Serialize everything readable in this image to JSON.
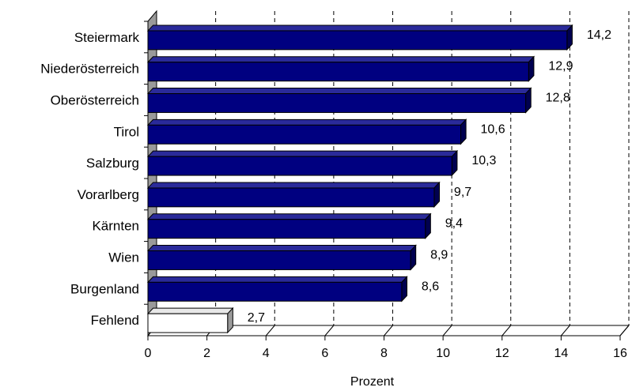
{
  "chart_data": {
    "type": "bar",
    "orientation": "horizontal",
    "categories": [
      "Steiermark",
      "Niederösterreich",
      "Oberösterreich",
      "Tirol",
      "Salzburg",
      "Vorarlberg",
      "Kärnten",
      "Wien",
      "Burgenland",
      "Fehlend"
    ],
    "values": [
      14.2,
      12.9,
      12.8,
      10.6,
      10.3,
      9.7,
      9.4,
      8.9,
      8.6,
      2.7
    ],
    "value_labels": [
      "14,2",
      "12,9",
      "12,8",
      "10,6",
      "10,3",
      "9,7",
      "9,4",
      "8,9",
      "8,6",
      "2,7"
    ],
    "xlabel": "Prozent",
    "xlim": [
      0,
      16
    ],
    "x_ticks": [
      0,
      2,
      4,
      6,
      8,
      10,
      12,
      14,
      16
    ],
    "x_tick_labels": [
      "0",
      "2",
      "4",
      "6",
      "8",
      "10",
      "12",
      "14",
      "16"
    ],
    "grid": "vertical dashed",
    "style": "3d",
    "bar_color": "#000080",
    "missing_bar_color": "#ffffff"
  }
}
